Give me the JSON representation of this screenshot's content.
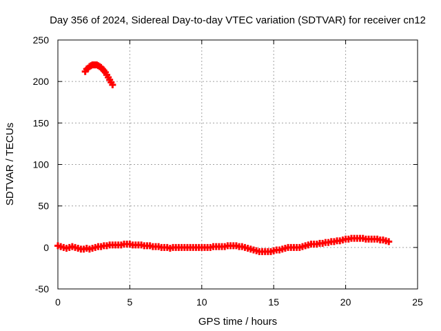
{
  "chart_data": {
    "type": "scatter",
    "title": "Day 356 of 2024, Sidereal Day-to-day VTEC variation (SDTVAR) for receiver cn12",
    "xlabel": "GPS time / hours",
    "ylabel": "SDTVAR / TECUs",
    "xlim": [
      0,
      25
    ],
    "ylim": [
      -50,
      250
    ],
    "xticks": [
      0,
      5,
      10,
      15,
      20,
      25
    ],
    "yticks": [
      -50,
      0,
      50,
      100,
      150,
      200,
      250
    ],
    "grid": true,
    "marker": "+",
    "series": [
      {
        "name": "SDTVAR",
        "color": "#ff0000",
        "x": [
          1.9,
          2.0,
          2.1,
          2.2,
          2.3,
          2.4,
          2.5,
          2.6,
          2.7,
          2.8,
          2.9,
          3.0,
          3.1,
          3.2,
          3.3,
          3.4,
          3.5,
          3.6,
          3.7,
          3.8
        ],
        "y": [
          212,
          215,
          216,
          218,
          219,
          220,
          220,
          220,
          220,
          219,
          218,
          217,
          215,
          213,
          211,
          208,
          205,
          202,
          199,
          196
        ]
      },
      {
        "name": "SDTVAR",
        "color": "#ff0000",
        "x": [
          0.0,
          0.2,
          0.4,
          0.6,
          0.8,
          1.0,
          1.2,
          1.4,
          1.6,
          1.8,
          2.0,
          2.2,
          2.4,
          2.6,
          2.8,
          3.0,
          3.2,
          3.4,
          3.6,
          3.8,
          4.0,
          4.2,
          4.4,
          4.6,
          4.8,
          5.0,
          5.2,
          5.4,
          5.6,
          5.8,
          6.0,
          6.2,
          6.4,
          6.6,
          6.8,
          7.0,
          7.2,
          7.4,
          7.6,
          7.8,
          8.0,
          8.2,
          8.4,
          8.6,
          8.8,
          9.0,
          9.2,
          9.4,
          9.6,
          9.8,
          10.0,
          10.2,
          10.4,
          10.6,
          10.8,
          11.0,
          11.2,
          11.4,
          11.6,
          11.8,
          12.0,
          12.2,
          12.4,
          12.6,
          12.8,
          13.0,
          13.2,
          13.4,
          13.6,
          13.8,
          14.0,
          14.2,
          14.4,
          14.6,
          14.8,
          15.0,
          15.2,
          15.4,
          15.6,
          15.8,
          16.0,
          16.2,
          16.4,
          16.6,
          16.8,
          17.0,
          17.2,
          17.4,
          17.6,
          17.8,
          18.0,
          18.2,
          18.4,
          18.6,
          18.8,
          19.0,
          19.2,
          19.4,
          19.6,
          19.8,
          20.0,
          20.2,
          20.4,
          20.6,
          20.8,
          21.0,
          21.2,
          21.4,
          21.6,
          21.8,
          22.0,
          22.2,
          22.4,
          22.6,
          22.8,
          23.0
        ],
        "y": [
          2,
          1,
          0,
          -1,
          0,
          1,
          0,
          -1,
          -2,
          -2,
          -1,
          -2,
          -1,
          0,
          1,
          1,
          2,
          2,
          3,
          3,
          3,
          3,
          3,
          4,
          4,
          4,
          3,
          3,
          3,
          3,
          2,
          2,
          2,
          1,
          1,
          1,
          0,
          0,
          0,
          -1,
          0,
          0,
          0,
          0,
          0,
          0,
          0,
          0,
          0,
          0,
          0,
          0,
          0,
          0,
          1,
          1,
          1,
          1,
          1,
          2,
          2,
          2,
          2,
          1,
          1,
          0,
          -1,
          -2,
          -3,
          -4,
          -5,
          -5,
          -5,
          -5,
          -5,
          -4,
          -3,
          -3,
          -2,
          -1,
          0,
          0,
          0,
          0,
          0,
          1,
          2,
          3,
          4,
          4,
          4,
          5,
          5,
          6,
          6,
          7,
          7,
          8,
          8,
          9,
          10,
          10,
          11,
          11,
          11,
          11,
          11,
          10,
          10,
          10,
          10,
          10,
          9,
          9,
          8,
          7
        ]
      }
    ]
  }
}
